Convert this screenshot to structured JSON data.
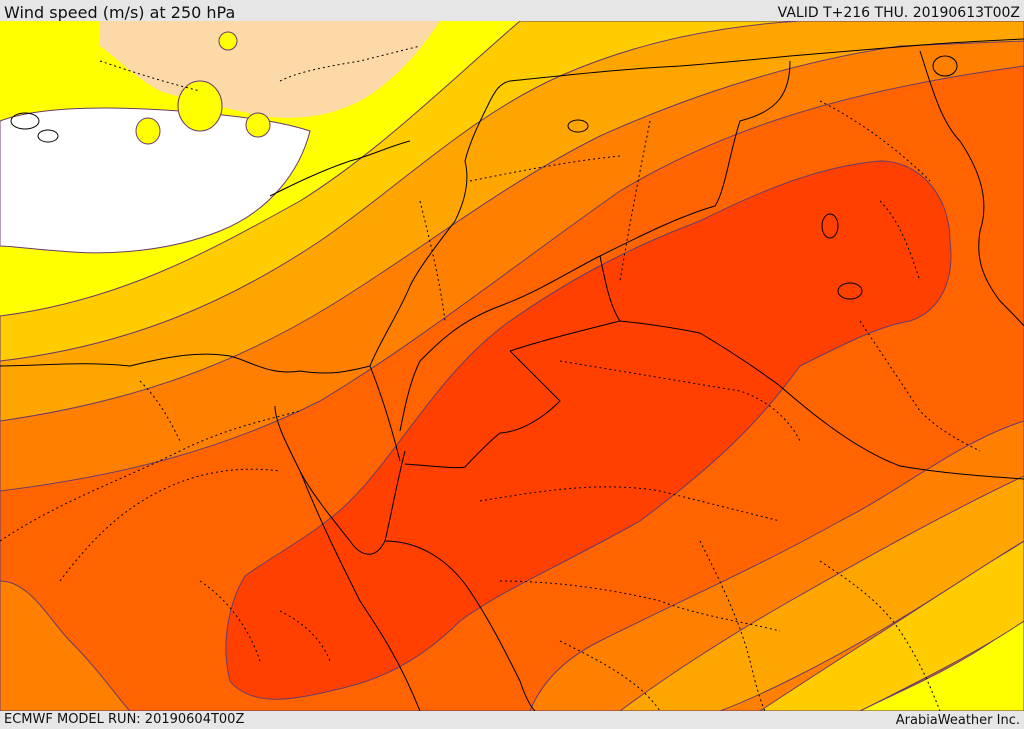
{
  "header": {
    "title": "Wind speed (m/s) at 250 hPa",
    "valid_time": "VALID T+216 THU. 20190613T00Z"
  },
  "footer": {
    "model_run": "ECMWF MODEL RUN: 20190604T00Z",
    "credit": "ArabiaWeather Inc."
  },
  "colors": {
    "calm": "#ffffff",
    "band_light_orange": "#fcd9a6",
    "band_yellow": "#ffff00",
    "band_gold": "#ffcc00",
    "band_amber": "#ffa500",
    "band_dark_orange": "#ff7f00",
    "band_orange_red": "#ff6400",
    "band_red": "#ff4000",
    "contour_line": "#6a3b6b",
    "border_line": "#000000"
  }
}
